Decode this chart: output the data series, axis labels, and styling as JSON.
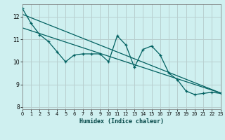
{
  "xlabel": "Humidex (Indice chaleur)",
  "bg_color": "#cff0f0",
  "grid_color": "#b8cece",
  "line_color": "#006060",
  "x_data": [
    0,
    1,
    2,
    3,
    4,
    5,
    6,
    7,
    8,
    9,
    10,
    11,
    12,
    13,
    14,
    15,
    16,
    17,
    18,
    19,
    20,
    21,
    22,
    23
  ],
  "y_data": [
    12.35,
    11.7,
    11.2,
    10.9,
    10.45,
    10.0,
    10.3,
    10.35,
    10.35,
    10.35,
    10.0,
    11.15,
    10.75,
    9.75,
    10.55,
    10.7,
    10.3,
    9.5,
    9.2,
    8.7,
    8.55,
    8.6,
    8.65,
    8.6
  ],
  "trend1_x": [
    0,
    23
  ],
  "trend1_y": [
    12.1,
    8.62
  ],
  "trend2_x": [
    0,
    23
  ],
  "trend2_y": [
    11.5,
    8.62
  ],
  "xlim": [
    0,
    23
  ],
  "ylim": [
    7.9,
    12.55
  ],
  "xticks": [
    0,
    1,
    2,
    3,
    4,
    5,
    6,
    7,
    8,
    9,
    10,
    11,
    12,
    13,
    14,
    15,
    16,
    17,
    18,
    19,
    20,
    21,
    22,
    23
  ],
  "yticks": [
    8,
    9,
    10,
    11,
    12
  ]
}
